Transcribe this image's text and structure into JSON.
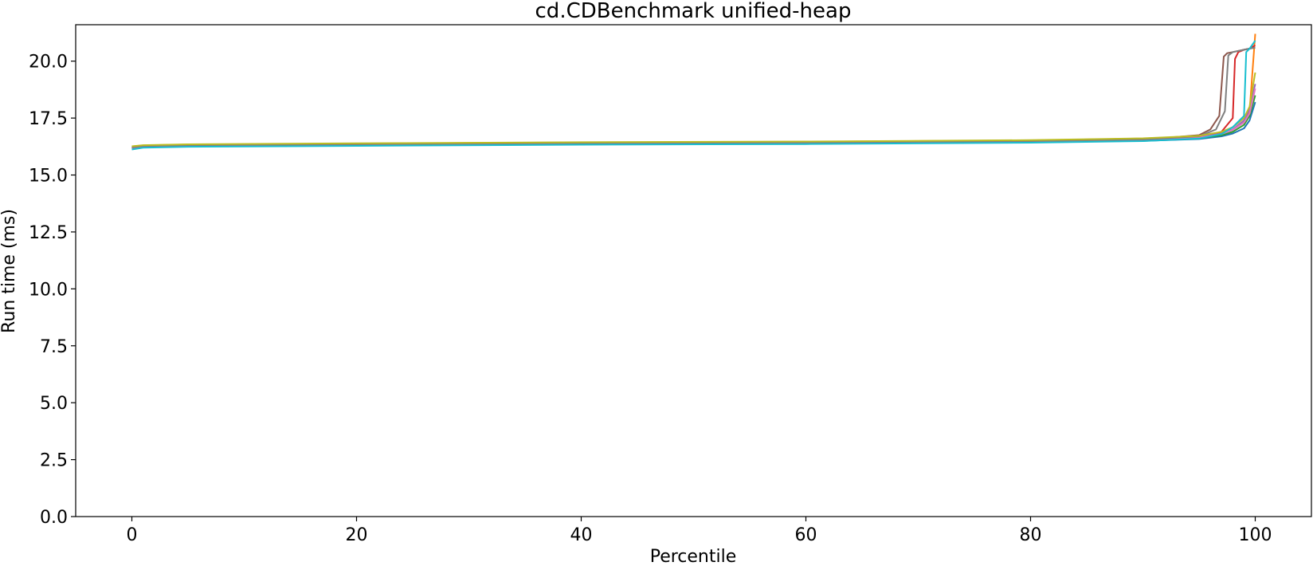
{
  "chart_data": {
    "type": "line",
    "title": "cd.CDBenchmark unified-heap",
    "xlabel": "Percentile",
    "ylabel": "Run time (ms)",
    "xlim": [
      -5,
      105
    ],
    "ylim": [
      0,
      21.6
    ],
    "xticks": [
      0,
      20,
      40,
      60,
      80,
      100
    ],
    "xtick_labels": [
      "0",
      "20",
      "40",
      "60",
      "80",
      "100"
    ],
    "yticks": [
      0,
      2.5,
      5,
      7.5,
      10,
      12.5,
      15,
      17.5,
      20
    ],
    "ytick_labels": [
      "0.0",
      "2.5",
      "5.0",
      "7.5",
      "10.0",
      "12.5",
      "15.0",
      "17.5",
      "20.0"
    ],
    "grid": false,
    "legend": "none",
    "series": [
      {
        "color": "#1f77b4",
        "x": [
          0,
          1,
          5,
          20,
          40,
          60,
          80,
          90,
          95,
          97,
          98,
          99,
          99.5,
          100
        ],
        "y": [
          16.15,
          16.22,
          16.26,
          16.3,
          16.35,
          16.38,
          16.44,
          16.5,
          16.58,
          16.7,
          16.82,
          17.05,
          17.4,
          18.2
        ]
      },
      {
        "color": "#ff7f0e",
        "x": [
          0,
          1,
          5,
          20,
          40,
          60,
          80,
          90,
          95,
          97,
          98,
          99,
          99.5,
          100
        ],
        "y": [
          16.25,
          16.3,
          16.34,
          16.38,
          16.43,
          16.46,
          16.52,
          16.6,
          16.7,
          16.85,
          17.0,
          17.35,
          17.8,
          21.2
        ]
      },
      {
        "color": "#2ca02c",
        "x": [
          0,
          1,
          5,
          20,
          40,
          60,
          80,
          90,
          95,
          97,
          98,
          99,
          99.5,
          100
        ],
        "y": [
          16.2,
          16.26,
          16.3,
          16.34,
          16.38,
          16.41,
          16.47,
          16.54,
          16.62,
          16.75,
          16.9,
          17.2,
          17.6,
          18.5
        ]
      },
      {
        "color": "#d62728",
        "x": [
          0,
          1,
          5,
          20,
          40,
          60,
          80,
          90,
          95,
          97,
          98,
          98.2,
          98.5,
          99,
          99.5,
          100
        ],
        "y": [
          16.18,
          16.25,
          16.29,
          16.33,
          16.37,
          16.4,
          16.46,
          16.53,
          16.65,
          16.9,
          17.5,
          20.1,
          20.4,
          20.5,
          20.55,
          20.7
        ]
      },
      {
        "color": "#9467bd",
        "x": [
          0,
          1,
          5,
          20,
          40,
          60,
          80,
          90,
          95,
          97,
          98,
          99,
          99.5,
          100
        ],
        "y": [
          16.22,
          16.27,
          16.31,
          16.35,
          16.4,
          16.43,
          16.49,
          16.56,
          16.66,
          16.82,
          17.0,
          17.4,
          17.9,
          19.0
        ]
      },
      {
        "color": "#8c564b",
        "x": [
          0,
          1,
          5,
          20,
          40,
          60,
          80,
          90,
          95,
          96,
          96.8,
          97.2,
          97.5,
          98,
          99,
          100
        ],
        "y": [
          16.2,
          16.26,
          16.3,
          16.34,
          16.39,
          16.42,
          16.48,
          16.55,
          16.75,
          17.0,
          17.6,
          20.2,
          20.35,
          20.4,
          20.5,
          20.6
        ]
      },
      {
        "color": "#e377c2",
        "x": [
          0,
          1,
          5,
          20,
          40,
          60,
          80,
          90,
          95,
          97,
          98,
          99,
          99.5,
          100
        ],
        "y": [
          16.19,
          16.25,
          16.29,
          16.33,
          16.38,
          16.41,
          16.47,
          16.54,
          16.64,
          16.8,
          16.98,
          17.3,
          17.7,
          18.8
        ]
      },
      {
        "color": "#7f7f7f",
        "x": [
          0,
          1,
          5,
          20,
          40,
          60,
          80,
          90,
          95,
          96.5,
          97.3,
          97.6,
          98,
          99,
          100
        ],
        "y": [
          16.21,
          16.27,
          16.31,
          16.35,
          16.4,
          16.43,
          16.49,
          16.56,
          16.7,
          17.0,
          17.8,
          20.25,
          20.4,
          20.5,
          20.6
        ]
      },
      {
        "color": "#bcbd22",
        "x": [
          0,
          1,
          5,
          20,
          40,
          60,
          80,
          90,
          95,
          97,
          98,
          99,
          99.5,
          100
        ],
        "y": [
          16.26,
          16.31,
          16.35,
          16.39,
          16.44,
          16.47,
          16.53,
          16.61,
          16.72,
          16.9,
          17.1,
          17.5,
          18.0,
          19.5
        ]
      },
      {
        "color": "#17becf",
        "x": [
          0,
          1,
          5,
          20,
          40,
          60,
          80,
          90,
          95,
          97,
          98,
          99,
          99.2,
          99.5,
          100
        ],
        "y": [
          16.12,
          16.2,
          16.24,
          16.28,
          16.33,
          16.36,
          16.42,
          16.49,
          16.6,
          16.8,
          17.1,
          17.6,
          20.4,
          20.55,
          20.9
        ]
      }
    ]
  }
}
